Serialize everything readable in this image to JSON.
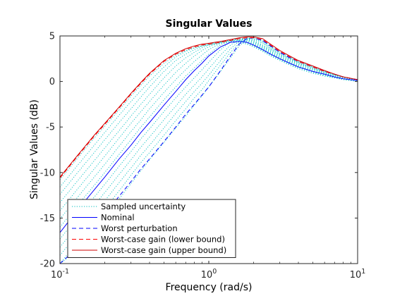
{
  "chart_data": {
    "type": "line",
    "title": "Singular Values",
    "xlabel": "Frequency (rad/s)",
    "ylabel": "Singular Values (dB)",
    "xscale": "log",
    "xlim": [
      0.1,
      10
    ],
    "ylim": [
      -20,
      5
    ],
    "x_ticks": [
      {
        "value": 0.1,
        "base": "10",
        "exp": "-1"
      },
      {
        "value": 1,
        "base": "10",
        "exp": "0"
      },
      {
        "value": 10,
        "base": "10",
        "exp": "1"
      }
    ],
    "y_ticks": [
      {
        "value": -20,
        "label": "-20"
      },
      {
        "value": -15,
        "label": "-15"
      },
      {
        "value": -10,
        "label": "-10"
      },
      {
        "value": -5,
        "label": "-5"
      },
      {
        "value": 0,
        "label": "0"
      },
      {
        "value": 5,
        "label": "5"
      }
    ],
    "grid": false,
    "legend_position": "bottom-left",
    "x": [
      0.1,
      0.13,
      0.17,
      0.2,
      0.25,
      0.3,
      0.35,
      0.4,
      0.5,
      0.6,
      0.7,
      0.8,
      0.9,
      1.0,
      1.2,
      1.4,
      1.6,
      1.8,
      2.0,
      2.3,
      2.6,
      3.0,
      3.5,
      4.0,
      5.0,
      6.0,
      7.0,
      8.0,
      10.0
    ],
    "series": [
      {
        "name": "Sampled uncertainty",
        "color": "#00bfbf",
        "style": "dotted",
        "samples": [
          [
            -10.8,
            -8.5,
            -6.2,
            -4.9,
            -3.1,
            -1.6,
            -0.4,
            0.6,
            2.0,
            2.9,
            3.4,
            3.7,
            3.9,
            4.0,
            4.2,
            4.3,
            4.3,
            4.1,
            3.8,
            3.3,
            2.8,
            2.3,
            1.8,
            1.4,
            0.9,
            0.6,
            0.4,
            0.2,
            0.0
          ],
          [
            -11.6,
            -9.3,
            -7.0,
            -5.6,
            -3.7,
            -2.2,
            -1.0,
            0.0,
            1.6,
            2.7,
            3.3,
            3.7,
            3.9,
            4.1,
            4.3,
            4.4,
            4.4,
            4.2,
            3.9,
            3.4,
            2.9,
            2.4,
            1.9,
            1.5,
            1.0,
            0.6,
            0.4,
            0.2,
            0.0
          ],
          [
            -12.4,
            -10.1,
            -7.8,
            -6.4,
            -4.5,
            -3.0,
            -1.7,
            -0.6,
            1.1,
            2.3,
            3.0,
            3.5,
            3.9,
            4.1,
            4.3,
            4.5,
            4.5,
            4.3,
            4.0,
            3.5,
            3.0,
            2.5,
            2.0,
            1.6,
            1.1,
            0.7,
            0.4,
            0.3,
            0.1
          ],
          [
            -13.3,
            -11.0,
            -8.7,
            -7.3,
            -5.4,
            -3.8,
            -2.5,
            -1.4,
            0.4,
            1.7,
            2.6,
            3.2,
            3.7,
            4.0,
            4.4,
            4.5,
            4.5,
            4.4,
            4.1,
            3.6,
            3.1,
            2.6,
            2.1,
            1.7,
            1.1,
            0.7,
            0.5,
            0.3,
            0.1
          ],
          [
            -14.2,
            -11.9,
            -9.6,
            -8.2,
            -6.2,
            -4.6,
            -3.3,
            -2.2,
            -0.4,
            1.0,
            2.0,
            2.8,
            3.4,
            3.8,
            4.3,
            4.6,
            4.6,
            4.5,
            4.2,
            3.7,
            3.2,
            2.7,
            2.2,
            1.8,
            1.2,
            0.8,
            0.5,
            0.3,
            0.1
          ],
          [
            -15.1,
            -12.8,
            -10.5,
            -9.1,
            -7.1,
            -5.5,
            -4.2,
            -3.0,
            -1.2,
            0.2,
            1.3,
            2.2,
            2.9,
            3.5,
            4.2,
            4.6,
            4.7,
            4.6,
            4.3,
            3.8,
            3.3,
            2.8,
            2.3,
            1.9,
            1.3,
            0.9,
            0.6,
            0.4,
            0.1
          ],
          [
            -16.0,
            -13.7,
            -11.4,
            -10.0,
            -8.0,
            -6.4,
            -5.0,
            -3.9,
            -2.0,
            -0.6,
            0.6,
            1.5,
            2.3,
            3.0,
            4.0,
            4.5,
            4.7,
            4.7,
            4.4,
            3.9,
            3.4,
            2.9,
            2.4,
            2.0,
            1.4,
            0.9,
            0.6,
            0.4,
            0.2
          ],
          [
            -17.3,
            -15.0,
            -12.7,
            -11.3,
            -9.3,
            -7.7,
            -6.3,
            -5.2,
            -3.3,
            -1.8,
            -0.6,
            0.4,
            1.3,
            2.1,
            3.5,
            4.4,
            4.7,
            4.7,
            4.5,
            4.0,
            3.5,
            3.0,
            2.5,
            2.0,
            1.4,
            1.0,
            0.7,
            0.5,
            0.2
          ],
          [
            -18.2,
            -15.9,
            -13.6,
            -12.2,
            -10.2,
            -8.6,
            -7.2,
            -6.1,
            -4.2,
            -2.7,
            -1.4,
            -0.4,
            0.5,
            1.4,
            2.9,
            4.0,
            4.6,
            4.8,
            4.6,
            4.2,
            3.6,
            3.0,
            2.5,
            2.1,
            1.5,
            1.0,
            0.7,
            0.5,
            0.2
          ],
          [
            -19.1,
            -16.8,
            -14.5,
            -13.1,
            -11.1,
            -9.5,
            -8.1,
            -7.0,
            -5.1,
            -3.5,
            -2.2,
            -1.1,
            -0.2,
            0.7,
            2.3,
            3.6,
            4.4,
            4.8,
            4.7,
            4.3,
            3.7,
            3.1,
            2.6,
            2.1,
            1.5,
            1.1,
            0.7,
            0.5,
            0.2
          ],
          [
            -20.0,
            -17.7,
            -15.4,
            -14.0,
            -12.0,
            -10.3,
            -8.9,
            -7.8,
            -5.9,
            -4.3,
            -3.0,
            -1.8,
            -0.9,
            0.1,
            1.8,
            3.2,
            4.2,
            4.7,
            4.8,
            4.4,
            3.8,
            3.2,
            2.7,
            2.2,
            1.6,
            1.1,
            0.8,
            0.5,
            0.2
          ],
          [
            -20.0,
            -18.6,
            -16.3,
            -14.9,
            -12.9,
            -11.2,
            -9.8,
            -8.6,
            -6.7,
            -5.1,
            -3.8,
            -2.6,
            -1.6,
            -0.6,
            1.1,
            2.6,
            3.9,
            4.6,
            4.8,
            4.5,
            3.9,
            3.2,
            2.7,
            2.2,
            1.6,
            1.1,
            0.8,
            0.5,
            0.2
          ]
        ]
      },
      {
        "name": "Nominal",
        "color": "#0000ff",
        "style": "solid",
        "values": [
          -16.6,
          -14.2,
          -11.9,
          -10.5,
          -8.5,
          -7.0,
          -5.6,
          -4.5,
          -2.6,
          -1.1,
          0.2,
          1.2,
          2.0,
          2.8,
          3.8,
          4.3,
          4.4,
          4.3,
          4.0,
          3.5,
          3.0,
          2.5,
          2.0,
          1.6,
          1.1,
          0.8,
          0.5,
          0.3,
          0.1
        ]
      },
      {
        "name": "Worst perturbation",
        "color": "#0000ff",
        "style": "dashed",
        "values": [
          -20.0,
          -18.3,
          -16.0,
          -14.6,
          -12.6,
          -11.0,
          -9.6,
          -8.5,
          -6.6,
          -5.0,
          -3.6,
          -2.5,
          -1.5,
          -0.6,
          1.2,
          2.8,
          4.1,
          4.7,
          4.8,
          4.5,
          3.9,
          3.2,
          2.6,
          2.2,
          1.6,
          1.1,
          0.8,
          0.5,
          0.2
        ]
      },
      {
        "name": "Worst-case gain (lower bound)",
        "color": "#ff0000",
        "style": "dashed",
        "values": [
          -10.6,
          -8.3,
          -6.0,
          -4.7,
          -2.9,
          -1.4,
          -0.2,
          0.8,
          2.2,
          3.0,
          3.5,
          3.8,
          4.0,
          4.1,
          4.3,
          4.5,
          4.7,
          4.8,
          4.8,
          4.6,
          4.0,
          3.3,
          2.7,
          2.2,
          1.6,
          1.1,
          0.8,
          0.5,
          0.2
        ]
      },
      {
        "name": "Worst-case gain (upper bound)",
        "color": "#cc0000",
        "style": "solid",
        "values": [
          -10.5,
          -8.2,
          -5.9,
          -4.6,
          -2.8,
          -1.3,
          -0.1,
          0.9,
          2.3,
          3.1,
          3.6,
          3.9,
          4.1,
          4.2,
          4.4,
          4.6,
          4.8,
          4.9,
          4.9,
          4.7,
          4.1,
          3.4,
          2.8,
          2.3,
          1.7,
          1.2,
          0.8,
          0.5,
          0.2
        ]
      }
    ]
  }
}
